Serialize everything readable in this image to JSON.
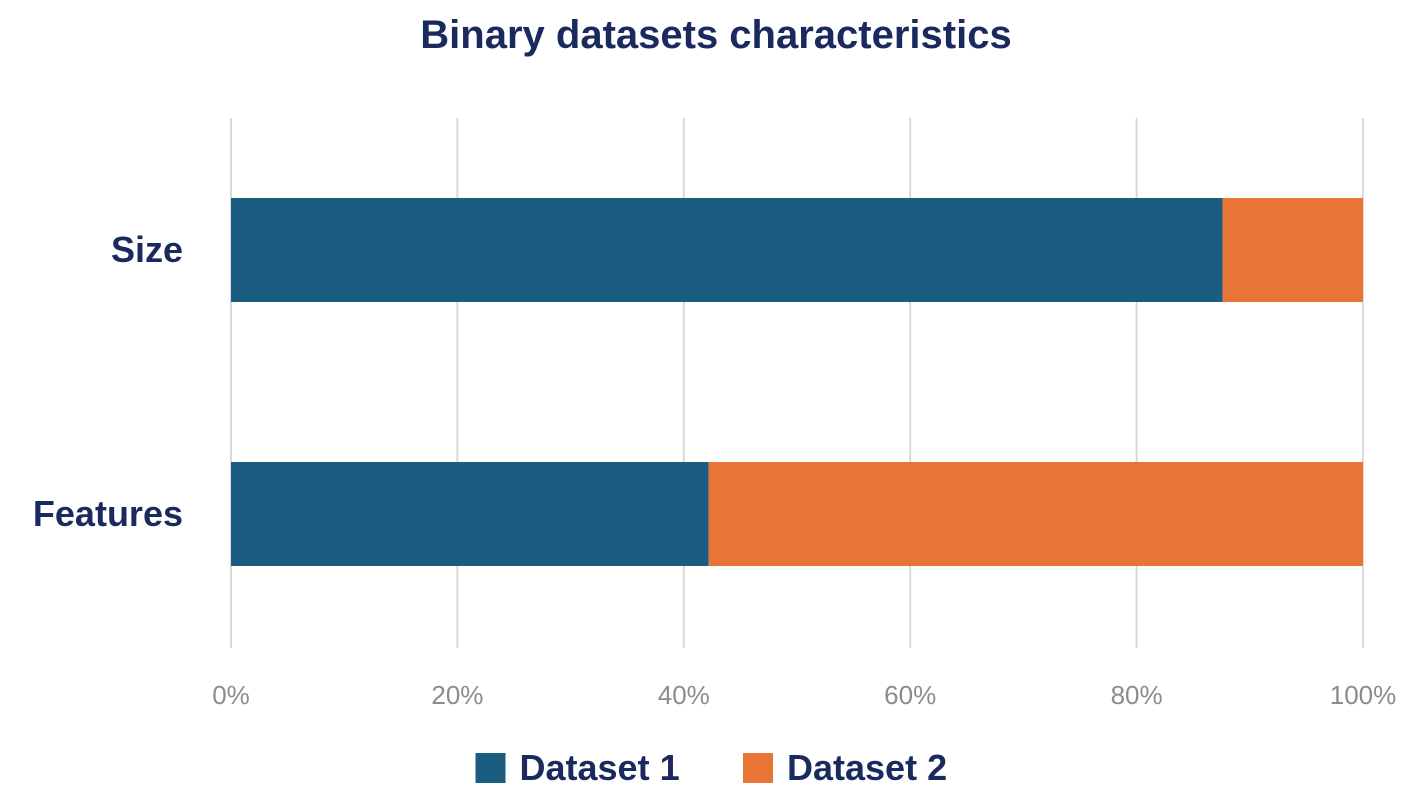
{
  "chart_data": {
    "type": "bar",
    "orientation": "horizontal",
    "stacked": "100%",
    "title": "Binary datasets characteristics",
    "xlabel": "",
    "ylabel": "",
    "categories": [
      "Size",
      "Features"
    ],
    "series": [
      {
        "name": "Dataset 1",
        "color": "#1a5d80",
        "values": [
          87.6,
          42.2
        ]
      },
      {
        "name": "Dataset 2",
        "color": "#e87535",
        "values": [
          12.4,
          57.8
        ]
      }
    ],
    "xlim": [
      0,
      100
    ],
    "x_ticks": [
      0,
      20,
      40,
      60,
      80,
      100
    ],
    "x_tick_labels": [
      "0%",
      "20%",
      "40%",
      "60%",
      "80%",
      "100%"
    ],
    "grid": true,
    "legend": "bottom"
  }
}
